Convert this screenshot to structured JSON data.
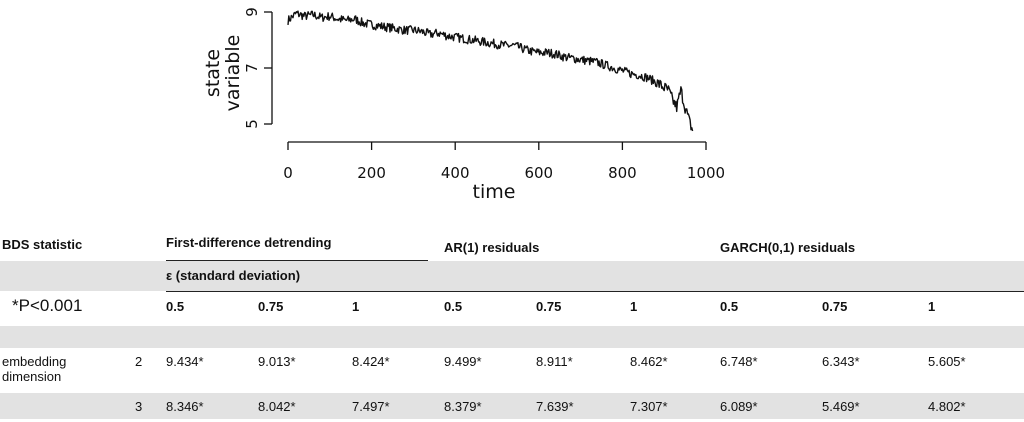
{
  "chart_data": {
    "type": "line",
    "xlabel": "time",
    "ylabel": "state variable",
    "xlim": [
      0,
      1000
    ],
    "ylim": [
      5,
      9
    ],
    "xticks": [
      "0",
      "200",
      "400",
      "600",
      "800",
      "1000"
    ],
    "yticks": [
      "5",
      "7",
      "9"
    ],
    "grid": false,
    "series": [
      {
        "x": [
          0,
          20,
          40,
          60,
          80,
          100,
          120,
          140,
          160,
          180,
          200,
          220,
          240,
          260,
          280,
          300,
          320,
          340,
          360,
          380,
          400,
          420,
          440,
          460,
          480,
          500,
          520,
          540,
          560,
          580,
          600,
          620,
          640,
          660,
          680,
          700,
          720,
          740,
          760,
          780,
          800,
          820,
          840,
          860,
          880,
          900,
          910,
          920,
          930,
          940,
          950,
          960,
          968
        ],
        "y": [
          8.7,
          8.95,
          8.85,
          8.9,
          8.8,
          8.85,
          8.75,
          8.7,
          8.75,
          8.6,
          8.55,
          8.5,
          8.45,
          8.4,
          8.35,
          8.35,
          8.3,
          8.2,
          8.25,
          8.15,
          8.1,
          8.05,
          8.0,
          7.95,
          7.9,
          7.85,
          7.8,
          7.8,
          7.7,
          7.6,
          7.55,
          7.55,
          7.5,
          7.4,
          7.35,
          7.3,
          7.25,
          7.2,
          7.1,
          7.0,
          6.9,
          6.8,
          6.75,
          6.65,
          6.5,
          6.3,
          6.2,
          5.85,
          5.6,
          6.2,
          5.6,
          5.1,
          4.75
        ]
      }
    ]
  },
  "table": {
    "header1": {
      "bds_statistic": "BDS statistic",
      "first_difference": "First-difference detrending",
      "ar1": "AR(1) residuals",
      "garch": "GARCH(0,1) residuals"
    },
    "header2": {
      "epsilon": "ε (standard deviation)"
    },
    "header3": {
      "note": "*P<0.001",
      "cols": [
        "0.5",
        "0.75",
        "1",
        "0.5",
        "0.75",
        "1",
        "0.5",
        "0.75",
        "1"
      ]
    },
    "rows": [
      {
        "label": "embedding dimension",
        "dim": "2",
        "values": [
          "9.434*",
          "9.013*",
          "8.424*",
          "9.499*",
          "8.911*",
          "8.462*",
          "6.748*",
          "6.343*",
          "5.605*"
        ]
      },
      {
        "label": "",
        "dim": "3",
        "values": [
          "8.346*",
          "8.042*",
          "7.497*",
          "8.379*",
          "7.639*",
          "7.307*",
          "6.089*",
          "5.469*",
          "4.802*"
        ]
      }
    ]
  }
}
